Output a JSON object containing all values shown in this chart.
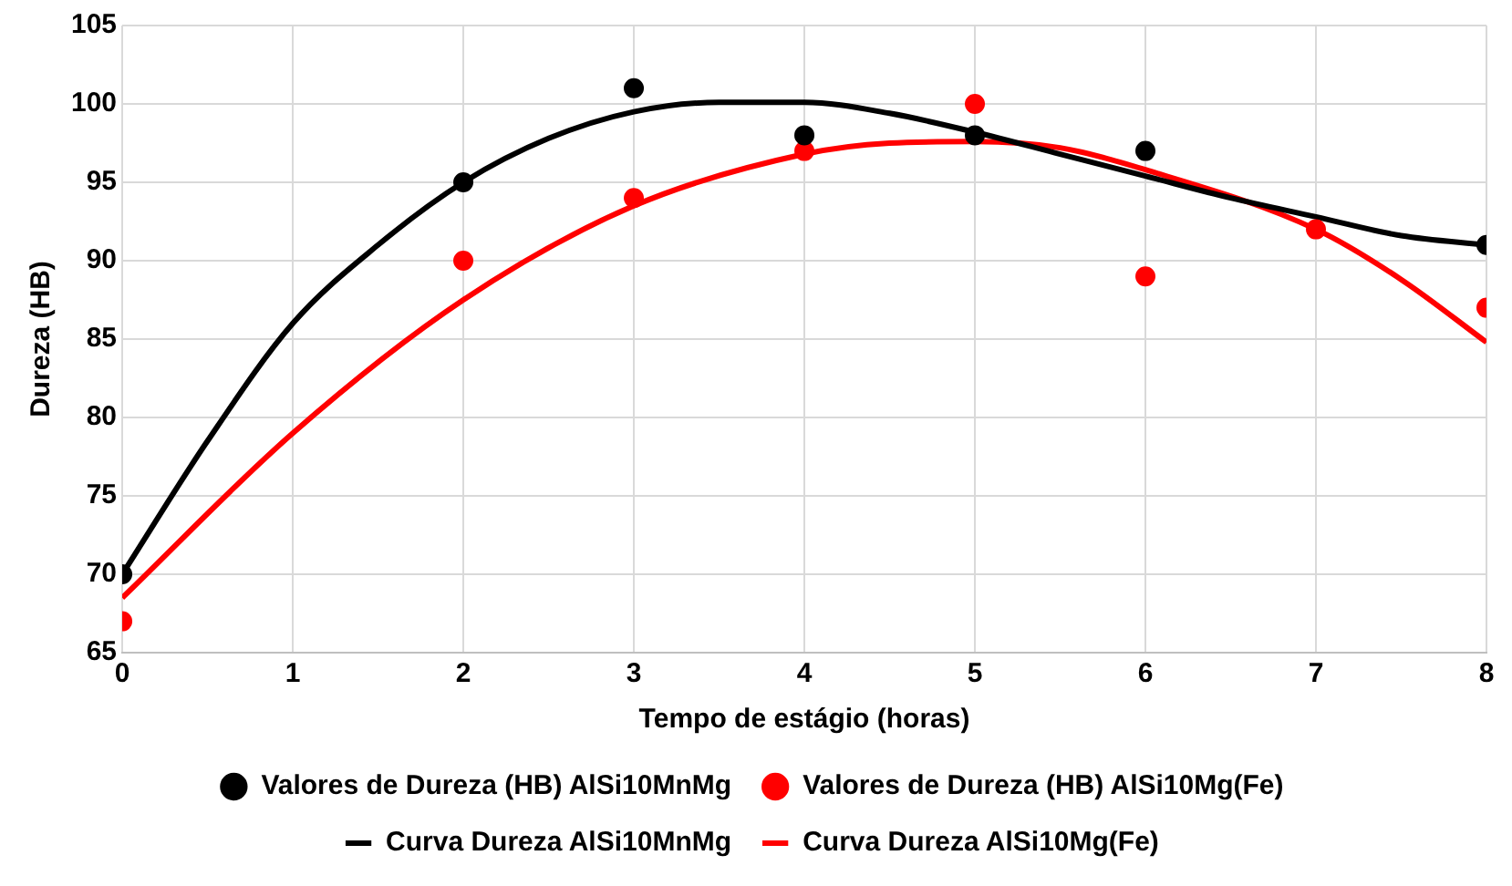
{
  "chart_data": {
    "type": "scatter",
    "xlabel": "Tempo de estágio (horas)",
    "ylabel": "Dureza (HB)",
    "xlim": [
      0,
      8
    ],
    "xticks": [
      0,
      1,
      2,
      3,
      4,
      5,
      6,
      7,
      8
    ],
    "ylim": [
      65,
      105
    ],
    "yticks": [
      65,
      70,
      75,
      80,
      85,
      90,
      95,
      100,
      105
    ],
    "grid": true,
    "legend": "bottom",
    "series": [
      {
        "name": "Valores de Dureza (HB) AlSi10MnMg",
        "color": "#000000",
        "type": "scatter",
        "marker": "circle",
        "x": [
          0,
          2,
          3,
          4,
          5,
          6,
          8
        ],
        "values": [
          70,
          95,
          101,
          98,
          98,
          97,
          91
        ]
      },
      {
        "name": "Valores de Dureza (HB) AlSi10Mg(Fe)",
        "color": "#ff0000",
        "type": "scatter",
        "marker": "circle",
        "x": [
          0,
          2,
          3,
          4,
          5,
          6,
          7,
          8
        ],
        "values": [
          67,
          90,
          94,
          97,
          100,
          89,
          92,
          87
        ]
      },
      {
        "name": "Curva Dureza AlSi10MnMg",
        "color": "#000000",
        "type": "line",
        "marker": "none",
        "x": [
          0,
          0.5,
          1,
          1.5,
          2,
          2.5,
          3,
          3.5,
          4,
          4.5,
          5,
          5.5,
          6,
          6.5,
          7,
          7.5,
          8
        ],
        "values": [
          70,
          78.5,
          86,
          91,
          95,
          97.8,
          99.5,
          100.1,
          100.1,
          99.4,
          98.2,
          96.8,
          95.4,
          94,
          92.8,
          91.6,
          91
        ]
      },
      {
        "name": "Curva Dureza AlSi10Mg(Fe)",
        "color": "#ff0000",
        "type": "line",
        "marker": "none",
        "x": [
          0,
          1,
          2,
          3,
          4,
          4.5,
          5,
          5.5,
          6,
          7,
          7.5,
          8
        ],
        "values": [
          68.5,
          79,
          87.5,
          93.5,
          96.8,
          97.5,
          97.6,
          97.2,
          95.8,
          92,
          88.8,
          84.8
        ]
      }
    ]
  }
}
